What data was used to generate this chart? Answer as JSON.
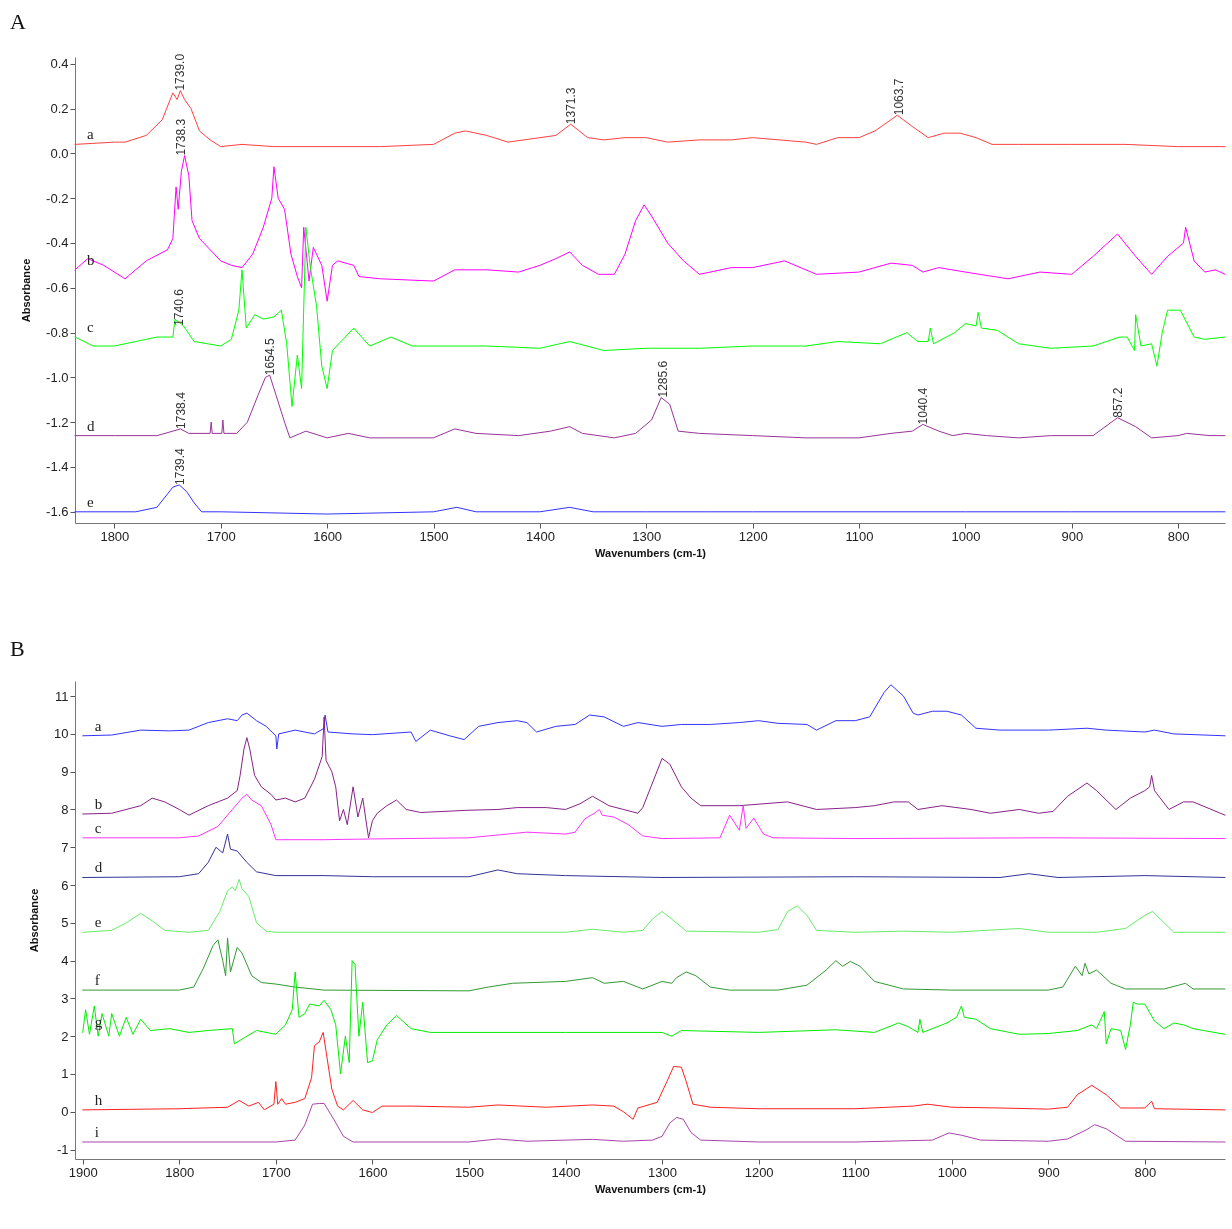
{
  "chart_data": [
    {
      "type": "line",
      "title": "A",
      "xlabel": "Wavenumbers (cm-1)",
      "ylabel": "Absorbance",
      "xlim": [
        1837,
        756
      ],
      "xticks": [
        1800,
        1700,
        1600,
        1500,
        1400,
        1300,
        1200,
        1100,
        1000,
        900,
        800
      ],
      "ylim": [
        -1.65,
        0.43
      ],
      "yticks": [
        0.4,
        0.2,
        {
          "value": 0,
          "label": "0.0"
        },
        -0.2,
        -0.4,
        -0.6,
        -0.8,
        {
          "value": -1,
          "label": "-1.0"
        },
        -1.2,
        -1.4,
        -1.6
      ],
      "annotations": [
        {
          "text": "1739.0",
          "x": 1739.0,
          "y": 0.28
        },
        {
          "text": "1371.3",
          "x": 1371.3,
          "y": 0.13
        },
        {
          "text": "1063.7",
          "x": 1063.7,
          "y": 0.17
        },
        {
          "text": "1738.3",
          "x": 1738.3,
          "y": -0.01
        },
        {
          "text": "1740.6",
          "x": 1740.6,
          "y": -0.77
        },
        {
          "text": "1654.5",
          "x": 1654.5,
          "y": -0.99
        },
        {
          "text": "1738.4",
          "x": 1738.4,
          "y": -1.23
        },
        {
          "text": "1285.6",
          "x": 1285.6,
          "y": -1.09
        },
        {
          "text": "1040.4",
          "x": 1040.4,
          "y": -1.21
        },
        {
          "text": "857.2",
          "x": 857.2,
          "y": -1.18
        },
        {
          "text": "1739.4",
          "x": 1739.4,
          "y": -1.48
        }
      ],
      "series": [
        {
          "name": "a",
          "color": "#ff4040",
          "x": [
            1837,
            1800,
            1790,
            1770,
            1755,
            1745,
            1741,
            1738,
            1734,
            1728,
            1720,
            1710,
            1700,
            1680,
            1650,
            1600,
            1550,
            1500,
            1480,
            1470,
            1450,
            1430,
            1400,
            1385,
            1371,
            1355,
            1340,
            1320,
            1300,
            1280,
            1250,
            1220,
            1200,
            1150,
            1140,
            1120,
            1100,
            1085,
            1064,
            1050,
            1035,
            1020,
            1005,
            990,
            975,
            950,
            900,
            850,
            800,
            756
          ],
          "values": [
            0.04,
            0.05,
            0.05,
            0.08,
            0.15,
            0.27,
            0.24,
            0.28,
            0.24,
            0.2,
            0.1,
            0.06,
            0.03,
            0.04,
            0.03,
            0.03,
            0.03,
            0.04,
            0.09,
            0.1,
            0.08,
            0.05,
            0.07,
            0.08,
            0.13,
            0.07,
            0.06,
            0.07,
            0.07,
            0.05,
            0.06,
            0.06,
            0.07,
            0.05,
            0.04,
            0.07,
            0.07,
            0.1,
            0.17,
            0.12,
            0.07,
            0.09,
            0.09,
            0.07,
            0.04,
            0.04,
            0.04,
            0.04,
            0.03,
            0.03
          ]
        },
        {
          "name": "b",
          "color": "#ff00ff",
          "x": [
            1837,
            1825,
            1810,
            1790,
            1770,
            1750,
            1745,
            1742,
            1740,
            1737,
            1734,
            1730,
            1727,
            1720,
            1700,
            1690,
            1680,
            1670,
            1660,
            1652,
            1650,
            1646,
            1640,
            1634,
            1628,
            1624,
            1622,
            1617,
            1613,
            1605,
            1600,
            1595,
            1590,
            1575,
            1570,
            1550,
            1500,
            1480,
            1450,
            1420,
            1400,
            1385,
            1372,
            1360,
            1345,
            1330,
            1320,
            1310,
            1302,
            1295,
            1280,
            1265,
            1250,
            1220,
            1200,
            1170,
            1140,
            1100,
            1070,
            1050,
            1040,
            1025,
            1000,
            960,
            930,
            900,
            880,
            857,
            840,
            825,
            810,
            795,
            793,
            785,
            775,
            765,
            756
          ],
          "values": [
            -0.52,
            -0.47,
            -0.5,
            -0.56,
            -0.48,
            -0.43,
            -0.38,
            -0.15,
            -0.25,
            -0.08,
            -0.01,
            -0.1,
            -0.3,
            -0.38,
            -0.48,
            -0.5,
            -0.51,
            -0.45,
            -0.33,
            -0.2,
            -0.06,
            -0.2,
            -0.25,
            -0.45,
            -0.55,
            -0.6,
            -0.33,
            -0.57,
            -0.42,
            -0.5,
            -0.66,
            -0.5,
            -0.48,
            -0.5,
            -0.55,
            -0.56,
            -0.57,
            -0.52,
            -0.52,
            -0.53,
            -0.5,
            -0.47,
            -0.44,
            -0.5,
            -0.54,
            -0.54,
            -0.45,
            -0.3,
            -0.23,
            -0.28,
            -0.4,
            -0.48,
            -0.54,
            -0.51,
            -0.51,
            -0.48,
            -0.54,
            -0.53,
            -0.49,
            -0.5,
            -0.53,
            -0.51,
            -0.53,
            -0.56,
            -0.53,
            -0.54,
            -0.46,
            -0.36,
            -0.46,
            -0.54,
            -0.46,
            -0.4,
            -0.33,
            -0.48,
            -0.53,
            -0.52,
            -0.54
          ]
        },
        {
          "name": "c",
          "color": "#00ff00",
          "x": [
            1837,
            1820,
            1800,
            1780,
            1760,
            1745,
            1743,
            1735,
            1725,
            1700,
            1690,
            1683,
            1680,
            1676,
            1668,
            1660,
            1650,
            1643,
            1638,
            1633,
            1628,
            1624,
            1620,
            1616,
            1610,
            1605,
            1600,
            1595,
            1585,
            1575,
            1560,
            1540,
            1520,
            1500,
            1450,
            1400,
            1372,
            1340,
            1300,
            1250,
            1200,
            1150,
            1120,
            1080,
            1055,
            1045,
            1035,
            1033,
            1030,
            1010,
            1000,
            990,
            988,
            985,
            970,
            950,
            920,
            880,
            855,
            848,
            841,
            840,
            835,
            825,
            820,
            815,
            810,
            798,
            785,
            775,
            756
          ],
          "values": [
            -0.82,
            -0.86,
            -0.86,
            -0.84,
            -0.82,
            -0.82,
            -0.74,
            -0.77,
            -0.84,
            -0.86,
            -0.83,
            -0.7,
            -0.52,
            -0.78,
            -0.72,
            -0.74,
            -0.73,
            -0.7,
            -0.85,
            -1.13,
            -0.9,
            -1.05,
            -0.33,
            -0.5,
            -0.68,
            -0.95,
            -1.05,
            -0.88,
            -0.83,
            -0.78,
            -0.86,
            -0.82,
            -0.86,
            -0.86,
            -0.86,
            -0.87,
            -0.84,
            -0.88,
            -0.87,
            -0.87,
            -0.86,
            -0.86,
            -0.84,
            -0.85,
            -0.8,
            -0.84,
            -0.84,
            -0.78,
            -0.85,
            -0.8,
            -0.76,
            -0.77,
            -0.71,
            -0.78,
            -0.79,
            -0.85,
            -0.87,
            -0.86,
            -0.82,
            -0.82,
            -0.88,
            -0.72,
            -0.86,
            -0.85,
            -0.95,
            -0.8,
            -0.7,
            -0.7,
            -0.82,
            -0.83,
            -0.82
          ]
        },
        {
          "name": "d",
          "color": "#993399",
          "x": [
            1837,
            1800,
            1760,
            1745,
            1738,
            1730,
            1710,
            1709,
            1708,
            1699,
            1698,
            1697,
            1685,
            1675,
            1665,
            1658,
            1654,
            1648,
            1640,
            1635,
            1620,
            1600,
            1580,
            1560,
            1500,
            1480,
            1460,
            1420,
            1390,
            1372,
            1360,
            1330,
            1310,
            1295,
            1286,
            1278,
            1270,
            1250,
            1200,
            1150,
            1100,
            1070,
            1050,
            1040,
            1025,
            1012,
            1000,
            980,
            950,
            920,
            880,
            857,
            840,
            825,
            800,
            792,
            770,
            756
          ],
          "values": [
            -1.26,
            -1.26,
            -1.26,
            -1.24,
            -1.23,
            -1.25,
            -1.25,
            -1.2,
            -1.25,
            -1.25,
            -1.19,
            -1.25,
            -1.25,
            -1.2,
            -1.08,
            -1.0,
            -0.99,
            -1.08,
            -1.2,
            -1.27,
            -1.24,
            -1.27,
            -1.25,
            -1.27,
            -1.27,
            -1.23,
            -1.25,
            -1.26,
            -1.24,
            -1.22,
            -1.25,
            -1.27,
            -1.25,
            -1.19,
            -1.09,
            -1.12,
            -1.24,
            -1.25,
            -1.26,
            -1.27,
            -1.27,
            -1.25,
            -1.24,
            -1.21,
            -1.24,
            -1.26,
            -1.25,
            -1.26,
            -1.27,
            -1.26,
            -1.26,
            -1.18,
            -1.22,
            -1.27,
            -1.26,
            -1.25,
            -1.26,
            -1.26
          ]
        },
        {
          "name": "e",
          "color": "#3333ff",
          "x": [
            1837,
            1780,
            1760,
            1750,
            1745,
            1739,
            1732,
            1725,
            1718,
            1700,
            1600,
            1500,
            1478,
            1460,
            1400,
            1372,
            1350,
            1300,
            1240,
            1200,
            1000,
            900,
            756
          ],
          "values": [
            -1.6,
            -1.6,
            -1.58,
            -1.52,
            -1.49,
            -1.48,
            -1.51,
            -1.56,
            -1.6,
            -1.6,
            -1.61,
            -1.6,
            -1.58,
            -1.6,
            -1.6,
            -1.58,
            -1.6,
            -1.6,
            -1.6,
            -1.6,
            -1.6,
            -1.6,
            -1.6
          ]
        }
      ]
    },
    {
      "type": "line",
      "title": "B",
      "xlabel": "Wavenumbers (cm-1)",
      "ylabel": "Absorbance",
      "xlim": [
        1908,
        717
      ],
      "xticks": [
        1900,
        1800,
        1700,
        1600,
        1500,
        1400,
        1300,
        1200,
        1100,
        1000,
        900,
        800
      ],
      "ylim": [
        -1.25,
        11.4
      ],
      "yticks": [
        11,
        10,
        9,
        8,
        7,
        6,
        5,
        4,
        3,
        2,
        1,
        0,
        -1
      ],
      "series": [
        {
          "name": "a",
          "color": "#3333ff",
          "x": [
            1900,
            1870,
            1840,
            1810,
            1790,
            1770,
            1750,
            1740,
            1735,
            1730,
            1720,
            1710,
            1700,
            1699,
            1697,
            1680,
            1660,
            1650,
            1649,
            1646,
            1620,
            1600,
            1560,
            1555,
            1540,
            1520,
            1505,
            1490,
            1470,
            1450,
            1440,
            1430,
            1410,
            1390,
            1375,
            1360,
            1340,
            1325,
            1300,
            1280,
            1250,
            1220,
            1200,
            1180,
            1150,
            1140,
            1120,
            1100,
            1085,
            1070,
            1063,
            1050,
            1040,
            1035,
            1020,
            1005,
            990,
            975,
            950,
            900,
            860,
            840,
            800,
            790,
            770,
            717
          ],
          "values": [
            9.95,
            9.97,
            10.1,
            10.08,
            10.1,
            10.3,
            10.4,
            10.35,
            10.5,
            10.55,
            10.35,
            10.2,
            9.95,
            9.6,
            10.0,
            10.1,
            10.0,
            10.15,
            10.5,
            10.05,
            10.0,
            9.98,
            10.05,
            9.8,
            10.1,
            9.95,
            9.85,
            10.2,
            10.3,
            10.35,
            10.3,
            10.05,
            10.2,
            10.25,
            10.5,
            10.45,
            10.2,
            10.3,
            10.2,
            10.25,
            10.25,
            10.3,
            10.35,
            10.28,
            10.25,
            10.1,
            10.35,
            10.35,
            10.45,
            11.1,
            11.3,
            11.0,
            10.55,
            10.5,
            10.6,
            10.6,
            10.5,
            10.15,
            10.1,
            10.1,
            10.15,
            10.1,
            10.05,
            10.1,
            10.0,
            9.95
          ]
        },
        {
          "name": "b",
          "color": "#882288",
          "x": [
            1900,
            1870,
            1840,
            1828,
            1815,
            1800,
            1790,
            1770,
            1750,
            1740,
            1737,
            1733,
            1730,
            1727,
            1722,
            1715,
            1705,
            1700,
            1690,
            1680,
            1670,
            1660,
            1652,
            1650,
            1648,
            1642,
            1638,
            1634,
            1630,
            1626,
            1620,
            1615,
            1610,
            1604,
            1600,
            1595,
            1585,
            1575,
            1565,
            1550,
            1500,
            1470,
            1450,
            1420,
            1400,
            1385,
            1372,
            1355,
            1340,
            1325,
            1320,
            1310,
            1300,
            1292,
            1280,
            1270,
            1260,
            1240,
            1220,
            1170,
            1140,
            1100,
            1080,
            1060,
            1045,
            1035,
            1010,
            980,
            960,
            930,
            910,
            895,
            880,
            860,
            850,
            830,
            815,
            800,
            795,
            793,
            790,
            775,
            760,
            750,
            717
          ],
          "values": [
            7.88,
            7.9,
            8.1,
            8.3,
            8.2,
            8.0,
            7.85,
            8.1,
            8.3,
            8.5,
            8.9,
            9.6,
            9.9,
            9.6,
            8.9,
            8.6,
            8.4,
            8.25,
            8.3,
            8.2,
            8.3,
            8.8,
            9.4,
            10.45,
            9.3,
            9.0,
            8.6,
            7.7,
            8.0,
            7.6,
            8.6,
            7.8,
            8.3,
            7.25,
            7.7,
            7.9,
            8.1,
            8.25,
            8.0,
            7.92,
            7.98,
            8.0,
            8.05,
            8.05,
            8.0,
            8.15,
            8.35,
            8.1,
            8.0,
            7.9,
            8.05,
            8.7,
            9.35,
            9.2,
            8.6,
            8.3,
            8.1,
            8.1,
            8.1,
            8.2,
            8.0,
            8.05,
            8.1,
            8.2,
            8.2,
            8.0,
            8.1,
            8.0,
            7.9,
            8.0,
            7.9,
            7.95,
            8.35,
            8.7,
            8.5,
            8.0,
            8.3,
            8.5,
            8.6,
            8.9,
            8.5,
            8.0,
            8.2,
            8.2,
            7.85
          ]
        },
        {
          "name": "c",
          "color": "#ff33ff",
          "x": [
            1900,
            1800,
            1780,
            1760,
            1745,
            1735,
            1730,
            1725,
            1715,
            1705,
            1700,
            1650,
            1600,
            1500,
            1440,
            1400,
            1390,
            1380,
            1370,
            1365,
            1362,
            1350,
            1335,
            1320,
            1300,
            1240,
            1230,
            1220,
            1216,
            1213,
            1205,
            1195,
            1185,
            1100,
            900,
            717
          ],
          "values": [
            7.25,
            7.25,
            7.3,
            7.55,
            8.0,
            8.3,
            8.4,
            8.25,
            8.1,
            7.6,
            7.2,
            7.2,
            7.22,
            7.25,
            7.4,
            7.35,
            7.4,
            7.75,
            7.9,
            8.0,
            7.85,
            7.8,
            7.6,
            7.3,
            7.23,
            7.25,
            7.85,
            7.45,
            8.1,
            7.5,
            7.77,
            7.35,
            7.25,
            7.23,
            7.25,
            7.23
          ]
        },
        {
          "name": "d",
          "color": "#333399",
          "x": [
            1900,
            1800,
            1780,
            1770,
            1762,
            1755,
            1750,
            1747,
            1740,
            1730,
            1720,
            1700,
            1650,
            1600,
            1500,
            1470,
            1450,
            1400,
            1300,
            1100,
            950,
            920,
            890,
            800,
            717
          ],
          "values": [
            6.2,
            6.22,
            6.3,
            6.6,
            7.0,
            6.85,
            7.35,
            6.95,
            6.9,
            6.6,
            6.35,
            6.25,
            6.25,
            6.22,
            6.22,
            6.4,
            6.3,
            6.25,
            6.2,
            6.22,
            6.2,
            6.3,
            6.2,
            6.25,
            6.2
          ]
        },
        {
          "name": "e",
          "color": "#66ee66",
          "x": [
            1900,
            1870,
            1855,
            1840,
            1828,
            1815,
            1790,
            1770,
            1758,
            1750,
            1745,
            1742,
            1738,
            1735,
            1728,
            1720,
            1710,
            1700,
            1400,
            1372,
            1340,
            1320,
            1310,
            1300,
            1290,
            1275,
            1200,
            1180,
            1170,
            1160,
            1150,
            1140,
            1100,
            1050,
            1000,
            930,
            900,
            850,
            820,
            800,
            792,
            780,
            770,
            717
          ],
          "values": [
            4.75,
            4.8,
            5.0,
            5.25,
            5.05,
            4.8,
            4.75,
            4.8,
            5.3,
            5.85,
            5.95,
            5.85,
            6.15,
            5.9,
            5.7,
            5.0,
            4.78,
            4.75,
            4.75,
            4.83,
            4.75,
            4.8,
            5.1,
            5.3,
            5.1,
            4.78,
            4.75,
            4.82,
            5.3,
            5.45,
            5.2,
            4.8,
            4.75,
            4.78,
            4.75,
            4.85,
            4.75,
            4.75,
            4.85,
            5.2,
            5.3,
            5.0,
            4.75,
            4.75
          ]
        },
        {
          "name": "f",
          "color": "#339933",
          "x": [
            1900,
            1800,
            1785,
            1775,
            1765,
            1760,
            1755,
            1752,
            1750,
            1747,
            1740,
            1735,
            1725,
            1715,
            1700,
            1680,
            1650,
            1500,
            1480,
            1455,
            1400,
            1372,
            1360,
            1340,
            1320,
            1300,
            1290,
            1285,
            1275,
            1265,
            1250,
            1230,
            1180,
            1150,
            1130,
            1120,
            1113,
            1105,
            1095,
            1080,
            1050,
            1000,
            900,
            885,
            872,
            865,
            862,
            858,
            850,
            835,
            820,
            780,
            765,
            758,
            750,
            717
          ],
          "values": [
            3.22,
            3.22,
            3.3,
            3.8,
            4.4,
            4.55,
            4.0,
            3.6,
            4.6,
            3.7,
            4.35,
            4.2,
            3.6,
            3.42,
            3.38,
            3.3,
            3.22,
            3.2,
            3.3,
            3.4,
            3.45,
            3.55,
            3.4,
            3.45,
            3.25,
            3.45,
            3.4,
            3.55,
            3.7,
            3.6,
            3.3,
            3.22,
            3.22,
            3.35,
            3.75,
            4.0,
            3.85,
            3.98,
            3.85,
            3.45,
            3.25,
            3.22,
            3.22,
            3.3,
            3.85,
            3.6,
            3.93,
            3.65,
            3.75,
            3.4,
            3.25,
            3.25,
            3.35,
            3.4,
            3.25,
            3.25
          ]
        },
        {
          "name": "g",
          "color": "#00ee00",
          "x": [
            1900,
            1897,
            1893,
            1888,
            1884,
            1880,
            1873,
            1870,
            1862,
            1855,
            1848,
            1840,
            1830,
            1810,
            1790,
            1770,
            1745,
            1743,
            1720,
            1700,
            1690,
            1683,
            1680,
            1676,
            1670,
            1665,
            1655,
            1650,
            1643,
            1638,
            1633,
            1628,
            1624,
            1621,
            1618,
            1614,
            1610,
            1605,
            1600,
            1595,
            1585,
            1575,
            1560,
            1540,
            1500,
            1400,
            1300,
            1290,
            1280,
            1200,
            1120,
            1080,
            1055,
            1045,
            1035,
            1033,
            1030,
            1005,
            995,
            990,
            987,
            975,
            960,
            930,
            900,
            870,
            855,
            850,
            842,
            840,
            835,
            825,
            820,
            815,
            812,
            808,
            800,
            790,
            780,
            770,
            760,
            750,
            717
          ],
          "values": [
            2.1,
            2.7,
            2.05,
            2.8,
            2.0,
            2.6,
            2.0,
            2.6,
            2.0,
            2.5,
            2.05,
            2.45,
            2.15,
            2.2,
            2.1,
            2.15,
            2.2,
            1.8,
            2.15,
            2.05,
            2.3,
            2.7,
            3.7,
            2.5,
            2.6,
            2.85,
            2.8,
            2.95,
            2.7,
            2.3,
            1.0,
            2.0,
            1.3,
            4.0,
            3.9,
            2.0,
            2.9,
            1.3,
            1.35,
            1.9,
            2.3,
            2.55,
            2.2,
            2.1,
            2.1,
            2.1,
            2.1,
            2.0,
            2.15,
            2.1,
            2.17,
            2.1,
            2.35,
            2.25,
            2.1,
            2.45,
            2.1,
            2.35,
            2.5,
            2.8,
            2.5,
            2.45,
            2.2,
            2.05,
            2.07,
            2.15,
            2.3,
            2.2,
            2.65,
            1.8,
            2.2,
            2.15,
            1.65,
            2.3,
            2.9,
            2.85,
            2.85,
            2.4,
            2.2,
            2.35,
            2.3,
            2.2,
            2.05
          ]
        },
        {
          "name": "h",
          "color": "#ff2020",
          "x": [
            1900,
            1800,
            1750,
            1738,
            1728,
            1718,
            1712,
            1702,
            1700,
            1698,
            1694,
            1690,
            1680,
            1670,
            1663,
            1660,
            1655,
            1651,
            1648,
            1642,
            1636,
            1630,
            1620,
            1610,
            1600,
            1590,
            1560,
            1500,
            1470,
            1420,
            1372,
            1350,
            1340,
            1330,
            1325,
            1305,
            1295,
            1288,
            1280,
            1275,
            1268,
            1250,
            1200,
            1100,
            1040,
            1025,
            1000,
            950,
            900,
            880,
            870,
            855,
            840,
            825,
            800,
            793,
            790,
            717
          ],
          "values": [
            0.05,
            0.08,
            0.12,
            0.3,
            0.15,
            0.25,
            0.05,
            0.2,
            0.8,
            0.2,
            0.35,
            0.2,
            0.25,
            0.35,
            0.9,
            1.75,
            1.85,
            2.1,
            1.6,
            0.6,
            0.15,
            0.05,
            0.3,
            0.05,
            -0.02,
            0.15,
            0.15,
            0.12,
            0.18,
            0.12,
            0.18,
            0.15,
            0.0,
            -0.2,
            0.1,
            0.25,
            0.8,
            1.2,
            1.18,
            0.8,
            0.2,
            0.12,
            0.08,
            0.08,
            0.15,
            0.2,
            0.12,
            0.1,
            0.07,
            0.12,
            0.45,
            0.7,
            0.45,
            0.1,
            0.1,
            0.28,
            0.08,
            0.05
          ]
        },
        {
          "name": "i",
          "color": "#aa44aa",
          "x": [
            1900,
            1700,
            1680,
            1670,
            1662,
            1655,
            1650,
            1640,
            1630,
            1620,
            1500,
            1470,
            1440,
            1372,
            1340,
            1310,
            1300,
            1292,
            1285,
            1278,
            1270,
            1260,
            1200,
            1100,
            1020,
            1003,
            990,
            970,
            900,
            880,
            860,
            852,
            840,
            820,
            717
          ],
          "values": [
            -0.8,
            -0.8,
            -0.75,
            -0.35,
            0.2,
            0.22,
            0.22,
            -0.2,
            -0.65,
            -0.8,
            -0.8,
            -0.72,
            -0.78,
            -0.73,
            -0.78,
            -0.75,
            -0.65,
            -0.3,
            -0.15,
            -0.2,
            -0.55,
            -0.75,
            -0.8,
            -0.8,
            -0.75,
            -0.56,
            -0.62,
            -0.75,
            -0.78,
            -0.72,
            -0.47,
            -0.34,
            -0.45,
            -0.78,
            -0.8
          ]
        }
      ]
    }
  ]
}
